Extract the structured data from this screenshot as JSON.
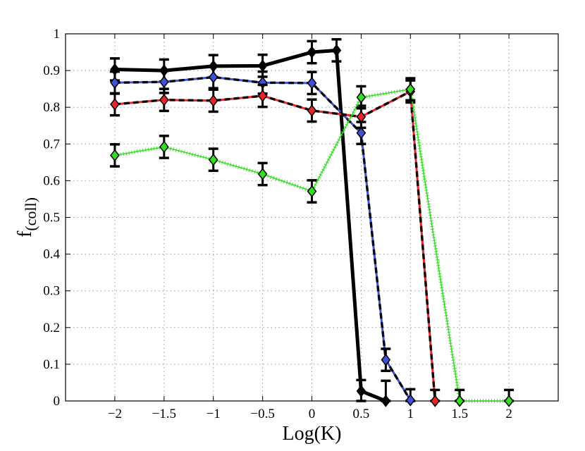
{
  "chart_data": {
    "type": "line",
    "title": "",
    "xlabel": "Log(K)",
    "ylabel_main": "f",
    "ylabel_sub": "(coll)",
    "xlim": [
      -2.5,
      2.5
    ],
    "ylim": [
      0,
      1
    ],
    "xticks": [
      -2,
      -1.5,
      -1,
      -0.5,
      0,
      0.5,
      1,
      1.5,
      2
    ],
    "xtick_labels": [
      "−2",
      "−1.5",
      "−1",
      "−0.5",
      "0",
      "0.5",
      "1",
      "1.5",
      "2"
    ],
    "yticks": [
      0,
      0.1,
      0.2,
      0.3,
      0.4,
      0.5,
      0.6,
      0.7,
      0.8,
      0.9,
      1
    ],
    "ytick_labels": [
      "0",
      "0.1",
      "0.2",
      "0.3",
      "0.4",
      "0.5",
      "0.6",
      "0.7",
      "0.8",
      "0.9",
      "1"
    ],
    "grid": true,
    "series": [
      {
        "name": "black",
        "color": "#000000",
        "marker": "diamond-black",
        "style": "solid-thick",
        "points": [
          {
            "x": -2,
            "y": 0.903,
            "err": 0.03
          },
          {
            "x": -1.5,
            "y": 0.9,
            "err": 0.03
          },
          {
            "x": -1,
            "y": 0.912,
            "err": 0.03
          },
          {
            "x": -0.5,
            "y": 0.913,
            "err": 0.03
          },
          {
            "x": 0,
            "y": 0.95,
            "err": 0.03
          },
          {
            "x": 0.25,
            "y": 0.955,
            "err": 0.03
          },
          {
            "x": 0.5,
            "y": 0.027,
            "err": 0.03
          },
          {
            "x": 0.75,
            "y": 0.0,
            "err": 0.055
          }
        ]
      },
      {
        "name": "blue",
        "color": "#3f51d6",
        "marker": "diamond-blue",
        "style": "blue-black-dashed",
        "points": [
          {
            "x": -2,
            "y": 0.867,
            "err": 0.03
          },
          {
            "x": -1.5,
            "y": 0.869,
            "err": 0.03
          },
          {
            "x": -1,
            "y": 0.882,
            "err": 0.03
          },
          {
            "x": -0.5,
            "y": 0.867,
            "err": 0.03
          },
          {
            "x": 0,
            "y": 0.866,
            "err": 0.03
          },
          {
            "x": 0.5,
            "y": 0.73,
            "err": 0.03
          },
          {
            "x": 0.75,
            "y": 0.112,
            "err": 0.03
          },
          {
            "x": 1,
            "y": 0.002,
            "err": 0.03
          }
        ]
      },
      {
        "name": "red",
        "color": "#e8262a",
        "marker": "diamond-red",
        "style": "red-black-dashed",
        "points": [
          {
            "x": -2,
            "y": 0.808,
            "err": 0.03
          },
          {
            "x": -1.5,
            "y": 0.82,
            "err": 0.03
          },
          {
            "x": -1,
            "y": 0.818,
            "err": 0.03
          },
          {
            "x": -0.5,
            "y": 0.831,
            "err": 0.03
          },
          {
            "x": 0,
            "y": 0.791,
            "err": 0.03
          },
          {
            "x": 0.5,
            "y": 0.774,
            "err": 0.03
          },
          {
            "x": 1,
            "y": 0.843,
            "err": 0.03
          },
          {
            "x": 1.25,
            "y": 0.0,
            "err": 0.03
          }
        ]
      },
      {
        "name": "green",
        "color": "#33dd22",
        "marker": "diamond-green",
        "style": "green-dotted",
        "points": [
          {
            "x": -2,
            "y": 0.669,
            "err": 0.03
          },
          {
            "x": -1.5,
            "y": 0.692,
            "err": 0.03
          },
          {
            "x": -1,
            "y": 0.657,
            "err": 0.03
          },
          {
            "x": -0.5,
            "y": 0.618,
            "err": 0.03
          },
          {
            "x": 0,
            "y": 0.571,
            "err": 0.03
          },
          {
            "x": 0.5,
            "y": 0.827,
            "err": 0.03
          },
          {
            "x": 1,
            "y": 0.849,
            "err": 0.03
          },
          {
            "x": 1.5,
            "y": 0.0,
            "err": 0.03
          },
          {
            "x": 2,
            "y": 0.0,
            "err": 0.03
          }
        ]
      }
    ]
  }
}
